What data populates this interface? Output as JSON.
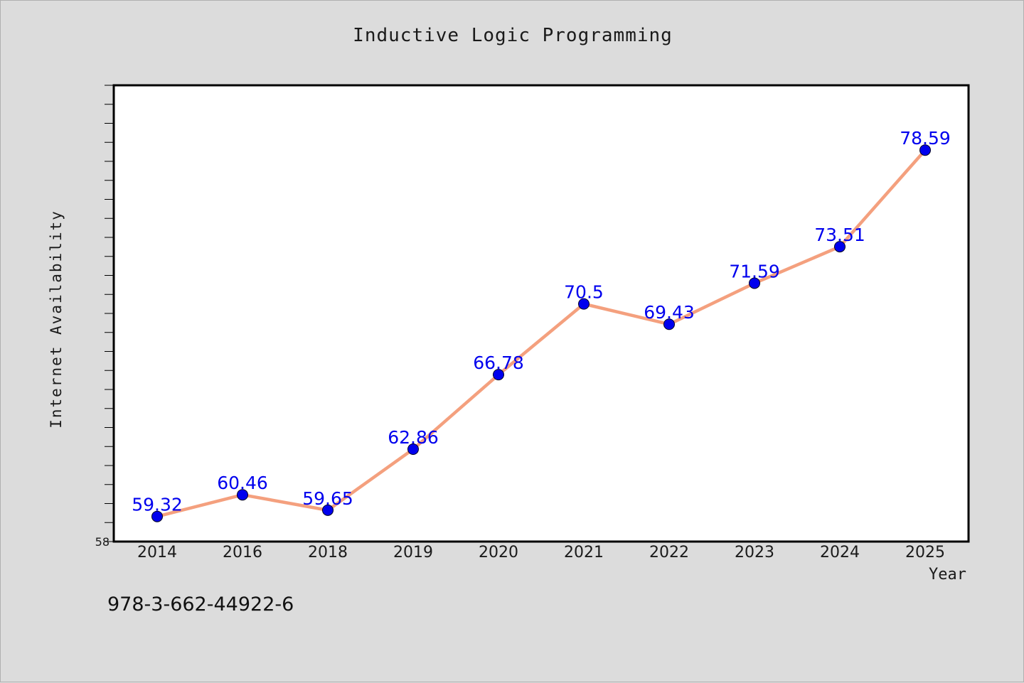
{
  "isbn": "978-3-662-44922-6",
  "chart_data": {
    "type": "line",
    "title": "Inductive Logic Programming",
    "xlabel": "Year",
    "ylabel": "Internet Availability",
    "categories": [
      "2014",
      "2016",
      "2018",
      "2019",
      "2020",
      "2021",
      "2022",
      "2023",
      "2024",
      "2025"
    ],
    "series": [
      {
        "values": [
          59.32,
          60.46,
          59.65,
          62.86,
          66.78,
          70.5,
          69.43,
          71.59,
          73.51,
          78.59
        ],
        "line_color": "#f4a07e",
        "marker_color": "#0000ee"
      }
    ],
    "label_color": "#0000ee",
    "ylim": [
      58,
      82
    ],
    "y_tick_labels": [
      "58"
    ],
    "minor_tick_step": 1,
    "grid": false,
    "legend": "none",
    "colors": {
      "background": "#dcdcdc",
      "plot_background": "#ffffff"
    }
  }
}
